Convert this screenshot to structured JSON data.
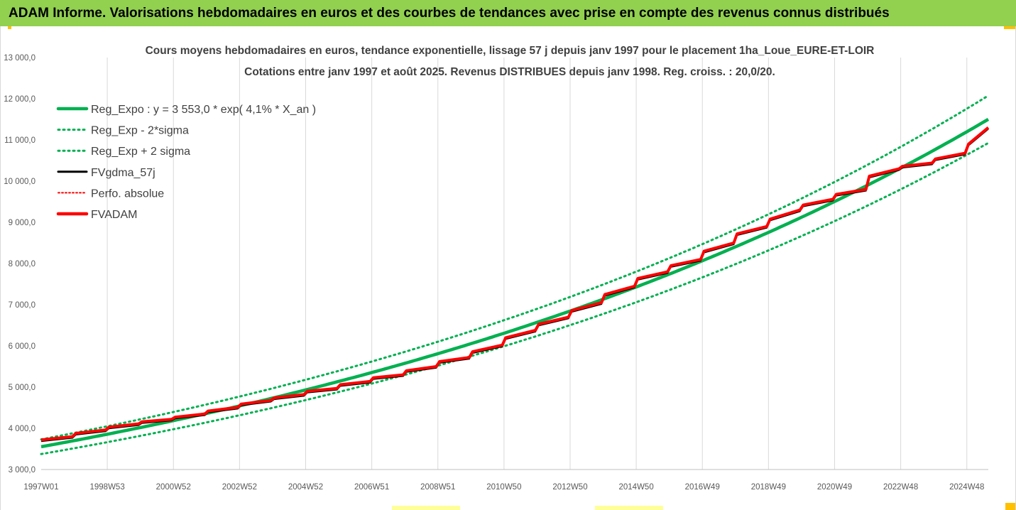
{
  "header": {
    "banner_title": "ADAM Informe. Valorisations hebdomadaires en euros et des courbes de tendances avec prise en compte des revenus connus distribués"
  },
  "colors": {
    "banner": "#92d050",
    "accent_corner": "#ffc000",
    "trend": "#00b050",
    "fvgdma": "#000000",
    "perfo": "#ff0000",
    "fvadam": "#ff0000",
    "grid": "#d9d9d9"
  },
  "chart_data": {
    "type": "line",
    "title_line1": "Cours moyens hebdomadaires en euros, tendance exponentielle, lissage 57 j depuis janv 1997  pour le placement 1ha_Loue_EURE-ET-LOIR",
    "title_line2": "Cotations entre janv 1997 et août 2025. Revenus DISTRIBUES depuis janv 1998. Reg. croiss. : 20,0/20.",
    "xlabel": "",
    "ylabel": "",
    "x_tick_labels": [
      "1997W01",
      "1998W53",
      "2000W52",
      "2002W52",
      "2004W52",
      "2006W51",
      "2008W51",
      "2010W50",
      "2012W50",
      "2014W50",
      "2016W49",
      "2018W49",
      "2020W49",
      "2022W48",
      "2024W48"
    ],
    "x_tick_years": [
      1997.0,
      1999.0,
      2001.0,
      2003.0,
      2005.0,
      2007.0,
      2009.0,
      2011.0,
      2013.0,
      2015.0,
      2017.0,
      2019.0,
      2021.0,
      2023.0,
      2025.0
    ],
    "x_range": [
      1997.0,
      2025.65
    ],
    "y_tick_labels": [
      "3 000,0",
      "4 000,0",
      "5 000,0",
      "6 000,0",
      "7 000,0",
      "8 000,0",
      "9 000,0",
      "10 000,0",
      "11 000,0",
      "12 000,0",
      "13 000,0"
    ],
    "ylim": [
      3000,
      13000
    ],
    "grid": "vertical lines only",
    "legend_position": "top-left",
    "legend": [
      {
        "label": "Reg_Expo : y = 3 553,0 * exp( 4,1% *  X_an )",
        "color": "#00b050",
        "style": "solid-thick"
      },
      {
        "label": "Reg_Exp - 2*sigma",
        "color": "#00b050",
        "style": "dotted"
      },
      {
        "label": "Reg_Exp + 2 sigma",
        "color": "#00b050",
        "style": "dotted"
      },
      {
        "label": "FVgdma_57j",
        "color": "#000000",
        "style": "solid"
      },
      {
        "label": "Perfo. absolue",
        "color": "#ff0000",
        "style": "dotted"
      },
      {
        "label": "FVADAM",
        "color": "#ff0000",
        "style": "solid-thick"
      }
    ],
    "trend": {
      "a": 3553.0,
      "b": 0.041,
      "sigma_band_factor": 0.05
    },
    "series": [
      {
        "name": "FVADAM",
        "x": [
          1997.0,
          1997.95,
          1998.05,
          1998.95,
          1999.05,
          1999.95,
          2000.05,
          2000.95,
          2001.05,
          2001.95,
          2002.05,
          2002.95,
          2003.05,
          2003.95,
          2004.05,
          2004.95,
          2005.05,
          2005.95,
          2006.05,
          2006.95,
          2007.05,
          2007.95,
          2008.05,
          2008.95,
          2009.05,
          2009.95,
          2010.05,
          2010.95,
          2011.05,
          2011.95,
          2012.05,
          2012.95,
          2013.05,
          2013.95,
          2014.05,
          2014.95,
          2015.05,
          2015.95,
          2016.05,
          2016.95,
          2017.05,
          2017.95,
          2018.05,
          2018.95,
          2019.05,
          2019.95,
          2020.05,
          2020.95,
          2021.05,
          2021.95,
          2022.05,
          2022.95,
          2023.05,
          2023.95,
          2024.05,
          2024.95,
          2025.05,
          2025.65
        ],
        "values": [
          3720,
          3800,
          3880,
          3960,
          4030,
          4110,
          4160,
          4220,
          4270,
          4350,
          4420,
          4510,
          4590,
          4680,
          4740,
          4820,
          4900,
          4970,
          5060,
          5140,
          5230,
          5300,
          5400,
          5500,
          5620,
          5720,
          5860,
          6020,
          6200,
          6380,
          6530,
          6700,
          6860,
          7050,
          7250,
          7450,
          7640,
          7800,
          7950,
          8100,
          8300,
          8500,
          8720,
          8900,
          9080,
          9300,
          9420,
          9560,
          9680,
          9800,
          10120,
          10300,
          10360,
          10440,
          10540,
          10680,
          10900,
          11300
        ]
      }
    ]
  }
}
